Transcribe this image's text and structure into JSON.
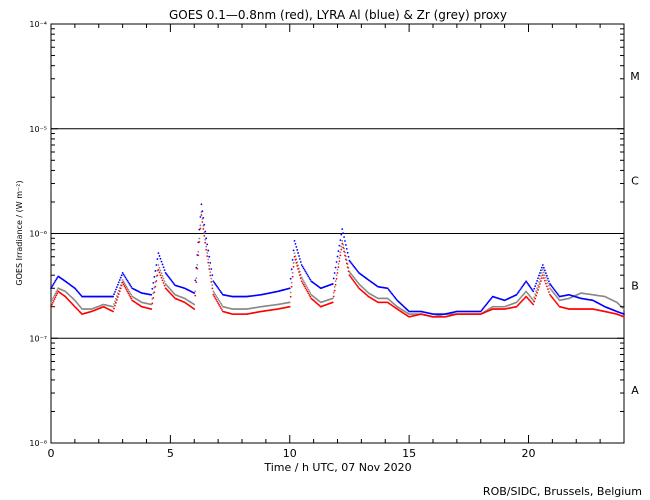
{
  "chart_data": {
    "type": "scatter",
    "title": "GOES 0.1—0.8nm (red), LYRA Al (blue) & Zr (grey) proxy",
    "xlabel": "Time / h UTC, 07 Nov 2020",
    "ylabel": "GOES Irradiance / (W m⁻²)",
    "y_scale": "log",
    "xlim": [
      0,
      24
    ],
    "ylim": [
      1e-08,
      0.0001
    ],
    "x_ticks": [
      0,
      5,
      10,
      15,
      20
    ],
    "x_tick_labels": [
      "0",
      "5",
      "10",
      "15",
      "20"
    ],
    "y_ticks": [
      1e-08,
      1e-07,
      1e-06,
      1e-05,
      0.0001
    ],
    "y_tick_labels": [
      "10⁻⁸",
      "10⁻⁷",
      "10⁻⁶",
      "10⁻⁵",
      "10⁻⁴"
    ],
    "flare_class_lines": [
      1e-07,
      1e-06,
      1e-05
    ],
    "flare_classes": [
      {
        "label": "A",
        "y": 3.2e-08
      },
      {
        "label": "B",
        "y": 3.2e-07
      },
      {
        "label": "C",
        "y": 3.2e-06
      },
      {
        "label": "M",
        "y": 3.2e-05
      }
    ],
    "series": [
      {
        "color": "#ff0000",
        "points": [
          [
            0,
            2e-07
          ],
          [
            0.3,
            2.8e-07
          ],
          [
            0.6,
            2.5e-07
          ],
          [
            1.0,
            2e-07
          ],
          [
            1.3,
            1.7e-07
          ],
          [
            1.7,
            1.8e-07
          ],
          [
            2.2,
            2e-07
          ],
          [
            2.6,
            1.8e-07
          ],
          [
            3.0,
            3.4e-07
          ],
          [
            3.4,
            2.3e-07
          ],
          [
            3.8,
            2e-07
          ],
          [
            4.2,
            1.9e-07
          ],
          [
            4.5,
            4.5e-07
          ],
          [
            4.8,
            3e-07
          ],
          [
            5.2,
            2.4e-07
          ],
          [
            5.6,
            2.2e-07
          ],
          [
            6.0,
            1.9e-07
          ],
          [
            6.3,
            1.5e-06
          ],
          [
            6.5,
            7e-07
          ],
          [
            6.8,
            2.6e-07
          ],
          [
            7.2,
            1.8e-07
          ],
          [
            7.6,
            1.7e-07
          ],
          [
            8.2,
            1.7e-07
          ],
          [
            8.8,
            1.8e-07
          ],
          [
            9.5,
            1.9e-07
          ],
          [
            10.0,
            2e-07
          ],
          [
            10.2,
            6e-07
          ],
          [
            10.5,
            3.5e-07
          ],
          [
            10.9,
            2.4e-07
          ],
          [
            11.3,
            2e-07
          ],
          [
            11.8,
            2.2e-07
          ],
          [
            12.2,
            8e-07
          ],
          [
            12.5,
            4e-07
          ],
          [
            12.9,
            3e-07
          ],
          [
            13.3,
            2.5e-07
          ],
          [
            13.7,
            2.2e-07
          ],
          [
            14.1,
            2.2e-07
          ],
          [
            14.5,
            1.9e-07
          ],
          [
            15.0,
            1.6e-07
          ],
          [
            15.5,
            1.7e-07
          ],
          [
            16.0,
            1.6e-07
          ],
          [
            16.5,
            1.6e-07
          ],
          [
            17.0,
            1.7e-07
          ],
          [
            17.5,
            1.7e-07
          ],
          [
            18.0,
            1.7e-07
          ],
          [
            18.5,
            1.9e-07
          ],
          [
            19.0,
            1.9e-07
          ],
          [
            19.5,
            2e-07
          ],
          [
            19.9,
            2.5e-07
          ],
          [
            20.2,
            2.1e-07
          ],
          [
            20.6,
            4e-07
          ],
          [
            20.9,
            2.6e-07
          ],
          [
            21.3,
            2e-07
          ],
          [
            21.7,
            1.9e-07
          ],
          [
            22.2,
            1.9e-07
          ],
          [
            22.7,
            1.9e-07
          ],
          [
            23.2,
            1.8e-07
          ],
          [
            23.7,
            1.7e-07
          ],
          [
            24.0,
            1.6e-07
          ]
        ]
      },
      {
        "color": "#0000ff",
        "points": [
          [
            0,
            3e-07
          ],
          [
            0.3,
            3.9e-07
          ],
          [
            0.6,
            3.5e-07
          ],
          [
            1.0,
            3e-07
          ],
          [
            1.3,
            2.5e-07
          ],
          [
            1.7,
            2.5e-07
          ],
          [
            2.2,
            2.5e-07
          ],
          [
            2.6,
            2.5e-07
          ],
          [
            3.0,
            4.2e-07
          ],
          [
            3.4,
            3e-07
          ],
          [
            3.8,
            2.7e-07
          ],
          [
            4.2,
            2.6e-07
          ],
          [
            4.5,
            6.5e-07
          ],
          [
            4.8,
            4.2e-07
          ],
          [
            5.2,
            3.2e-07
          ],
          [
            5.6,
            3e-07
          ],
          [
            6.0,
            2.7e-07
          ],
          [
            6.3,
            1.9e-06
          ],
          [
            6.5,
            9e-07
          ],
          [
            6.8,
            3.5e-07
          ],
          [
            7.2,
            2.6e-07
          ],
          [
            7.6,
            2.5e-07
          ],
          [
            8.2,
            2.5e-07
          ],
          [
            8.8,
            2.6e-07
          ],
          [
            9.5,
            2.8e-07
          ],
          [
            10.0,
            3e-07
          ],
          [
            10.2,
            8.5e-07
          ],
          [
            10.5,
            5e-07
          ],
          [
            10.9,
            3.5e-07
          ],
          [
            11.3,
            3e-07
          ],
          [
            11.8,
            3.3e-07
          ],
          [
            12.2,
            1.1e-06
          ],
          [
            12.5,
            5.5e-07
          ],
          [
            12.9,
            4.2e-07
          ],
          [
            13.3,
            3.6e-07
          ],
          [
            13.7,
            3.1e-07
          ],
          [
            14.1,
            3e-07
          ],
          [
            14.5,
            2.3e-07
          ],
          [
            15.0,
            1.8e-07
          ],
          [
            15.5,
            1.8e-07
          ],
          [
            16.0,
            1.7e-07
          ],
          [
            16.5,
            1.7e-07
          ],
          [
            17.0,
            1.8e-07
          ],
          [
            17.5,
            1.8e-07
          ],
          [
            18.0,
            1.8e-07
          ],
          [
            18.5,
            2.5e-07
          ],
          [
            19.0,
            2.3e-07
          ],
          [
            19.5,
            2.6e-07
          ],
          [
            19.9,
            3.5e-07
          ],
          [
            20.2,
            2.8e-07
          ],
          [
            20.6,
            5e-07
          ],
          [
            20.9,
            3.3e-07
          ],
          [
            21.3,
            2.5e-07
          ],
          [
            21.7,
            2.6e-07
          ],
          [
            22.2,
            2.4e-07
          ],
          [
            22.7,
            2.3e-07
          ],
          [
            23.2,
            2e-07
          ],
          [
            23.7,
            1.8e-07
          ],
          [
            24.0,
            1.7e-07
          ]
        ]
      },
      {
        "color": "#888888",
        "points": [
          [
            0,
            2.2e-07
          ],
          [
            0.3,
            3e-07
          ],
          [
            0.6,
            2.8e-07
          ],
          [
            1.0,
            2.3e-07
          ],
          [
            1.3,
            1.9e-07
          ],
          [
            1.7,
            1.9e-07
          ],
          [
            2.2,
            2.1e-07
          ],
          [
            2.6,
            2e-07
          ],
          [
            3.0,
            3.6e-07
          ],
          [
            3.4,
            2.5e-07
          ],
          [
            3.8,
            2.2e-07
          ],
          [
            4.2,
            2.1e-07
          ],
          [
            4.5,
            5e-07
          ],
          [
            4.8,
            3.3e-07
          ],
          [
            5.2,
            2.6e-07
          ],
          [
            5.6,
            2.4e-07
          ],
          [
            6.0,
            2.1e-07
          ],
          [
            6.3,
            1.6e-06
          ],
          [
            6.5,
            7.5e-07
          ],
          [
            6.8,
            2.8e-07
          ],
          [
            7.2,
            2e-07
          ],
          [
            7.6,
            1.9e-07
          ],
          [
            8.2,
            1.9e-07
          ],
          [
            8.8,
            2e-07
          ],
          [
            9.5,
            2.1e-07
          ],
          [
            10.0,
            2.2e-07
          ],
          [
            10.2,
            6.5e-07
          ],
          [
            10.5,
            3.8e-07
          ],
          [
            10.9,
            2.6e-07
          ],
          [
            11.3,
            2.2e-07
          ],
          [
            11.8,
            2.4e-07
          ],
          [
            12.2,
            8.5e-07
          ],
          [
            12.5,
            4.3e-07
          ],
          [
            12.9,
            3.3e-07
          ],
          [
            13.3,
            2.7e-07
          ],
          [
            13.7,
            2.4e-07
          ],
          [
            14.1,
            2.4e-07
          ],
          [
            14.5,
            2e-07
          ],
          [
            15.0,
            1.7e-07
          ],
          [
            15.5,
            1.7e-07
          ],
          [
            16.0,
            1.6e-07
          ],
          [
            16.5,
            1.7e-07
          ],
          [
            17.0,
            1.7e-07
          ],
          [
            17.5,
            1.7e-07
          ],
          [
            18.0,
            1.7e-07
          ],
          [
            18.5,
            2e-07
          ],
          [
            19.0,
            2e-07
          ],
          [
            19.5,
            2.2e-07
          ],
          [
            19.9,
            2.8e-07
          ],
          [
            20.2,
            2.3e-07
          ],
          [
            20.6,
            4.5e-07
          ],
          [
            20.9,
            3e-07
          ],
          [
            21.3,
            2.3e-07
          ],
          [
            21.7,
            2.4e-07
          ],
          [
            22.2,
            2.7e-07
          ],
          [
            22.7,
            2.6e-07
          ],
          [
            23.2,
            2.5e-07
          ],
          [
            23.7,
            2.2e-07
          ],
          [
            24.0,
            1.9e-07
          ]
        ]
      }
    ]
  },
  "credit": "ROB/SIDC, Brussels, Belgium"
}
